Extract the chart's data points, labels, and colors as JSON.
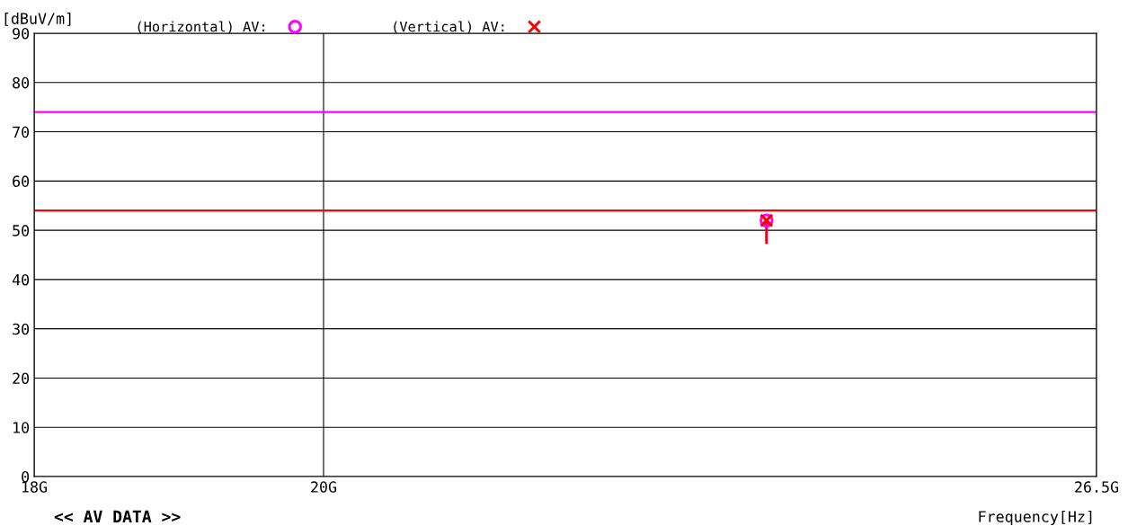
{
  "chart_data": {
    "type": "scatter",
    "ylabel": "[dBuV/m]",
    "xlabel": "Frequency[Hz]",
    "annotations": [
      "<< AV DATA >>"
    ],
    "log": "x",
    "x": [
      23.5
    ],
    "series": [
      {
        "name": "(Horizontal) AV:",
        "color": "#ff00ff",
        "marker": "circle",
        "values": [
          52
        ]
      },
      {
        "name": "(Vertical) AV:",
        "color": "#ff0000",
        "marker": "cross",
        "values": [
          52
        ]
      }
    ],
    "xlim": [
      18,
      26.5
    ],
    "xticks": [
      {
        "value": 18,
        "label": "18G"
      },
      {
        "value": 20,
        "label": "20G"
      },
      {
        "value": 26.5,
        "label": "26.5G"
      }
    ],
    "ylim": [
      0,
      90
    ],
    "yticks": [
      0,
      10,
      20,
      30,
      40,
      50,
      60,
      70,
      80,
      90
    ],
    "ref_lines": [
      {
        "axis": "y",
        "value": 74,
        "color": "#ff00ff"
      },
      {
        "axis": "y",
        "value": 54,
        "color": "#ff0000"
      }
    ],
    "grid": true,
    "legend": "top"
  }
}
